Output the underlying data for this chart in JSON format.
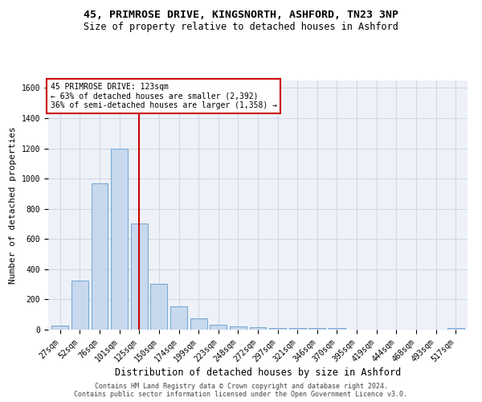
{
  "title": "45, PRIMROSE DRIVE, KINGSNORTH, ASHFORD, TN23 3NP",
  "subtitle": "Size of property relative to detached houses in Ashford",
  "xlabel": "Distribution of detached houses by size in Ashford",
  "ylabel": "Number of detached properties",
  "footer_line1": "Contains HM Land Registry data © Crown copyright and database right 2024.",
  "footer_line2": "Contains public sector information licensed under the Open Government Licence v3.0.",
  "bar_labels": [
    "27sqm",
    "52sqm",
    "76sqm",
    "101sqm",
    "125sqm",
    "150sqm",
    "174sqm",
    "199sqm",
    "223sqm",
    "248sqm",
    "272sqm",
    "297sqm",
    "321sqm",
    "346sqm",
    "370sqm",
    "395sqm",
    "419sqm",
    "444sqm",
    "468sqm",
    "493sqm",
    "517sqm"
  ],
  "bar_values": [
    25,
    325,
    970,
    1200,
    700,
    305,
    155,
    75,
    30,
    22,
    15,
    12,
    10,
    10,
    12,
    0,
    0,
    0,
    0,
    0,
    10
  ],
  "bar_color": "#c8d9ee",
  "bar_edgecolor": "#7aaad4",
  "bar_linewidth": 0.8,
  "vline_x": 4,
  "vline_color": "#cc0000",
  "vline_linewidth": 1.5,
  "annotation_text_line1": "45 PRIMROSE DRIVE: 123sqm",
  "annotation_text_line2": "← 63% of detached houses are smaller (2,392)",
  "annotation_text_line3": "36% of semi-detached houses are larger (1,358) →",
  "annotation_box_color": "#ffffff",
  "annotation_box_edgecolor": "#cc0000",
  "annotation_fontsize": 7.0,
  "grid_color": "#d0d8e8",
  "background_color": "#eef2f8",
  "ylim": [
    0,
    1650
  ],
  "yticks": [
    0,
    200,
    400,
    600,
    800,
    1000,
    1200,
    1400,
    1600
  ],
  "title_fontsize": 9.5,
  "subtitle_fontsize": 8.5,
  "xlabel_fontsize": 8.5,
  "ylabel_fontsize": 8.0,
  "tick_fontsize": 7.0,
  "footer_fontsize": 6.0
}
